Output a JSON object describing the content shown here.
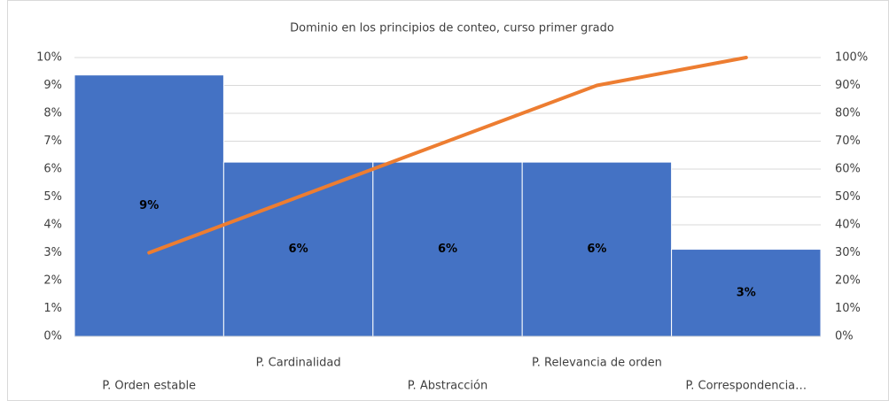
{
  "chart_data": {
    "type": "pareto",
    "title": "Dominio en los principios de conteo, curso primer grado",
    "categories": [
      "P. Orden estable",
      "P. Cardinalidad",
      "P. Abstracción",
      "P. Relevancia de orden",
      "P. Correspondencia…"
    ],
    "series": [
      {
        "type": "bar",
        "color": "#4472c4",
        "values": [
          9.375,
          6.25,
          6.25,
          6.25,
          3.125
        ],
        "value_labels": [
          "9%",
          "6%",
          "6%",
          "6%",
          "3%"
        ]
      },
      {
        "type": "line",
        "axis": "y2",
        "color": "#ed7d31",
        "values": [
          30,
          50,
          70,
          90,
          100
        ]
      }
    ],
    "ylim": [
      0,
      10
    ],
    "yticks": [
      {
        "value": 0,
        "label": "0%"
      },
      {
        "value": 1,
        "label": "1%"
      },
      {
        "value": 2,
        "label": "2%"
      },
      {
        "value": 3,
        "label": "3%"
      },
      {
        "value": 4,
        "label": "4%"
      },
      {
        "value": 5,
        "label": "5%"
      },
      {
        "value": 6,
        "label": "6%"
      },
      {
        "value": 7,
        "label": "7%"
      },
      {
        "value": 8,
        "label": "8%"
      },
      {
        "value": 9,
        "label": "9%"
      },
      {
        "value": 10,
        "label": "10%"
      }
    ],
    "y2lim": [
      0,
      100
    ],
    "y2ticks": [
      {
        "value": 0,
        "label": "0%"
      },
      {
        "value": 10,
        "label": "10%"
      },
      {
        "value": 20,
        "label": "20%"
      },
      {
        "value": 30,
        "label": "30%"
      },
      {
        "value": 40,
        "label": "40%"
      },
      {
        "value": 50,
        "label": "50%"
      },
      {
        "value": 60,
        "label": "60%"
      },
      {
        "value": 70,
        "label": "70%"
      },
      {
        "value": 80,
        "label": "80%"
      },
      {
        "value": 90,
        "label": "90%"
      },
      {
        "value": 100,
        "label": "100%"
      }
    ],
    "grid": true
  }
}
